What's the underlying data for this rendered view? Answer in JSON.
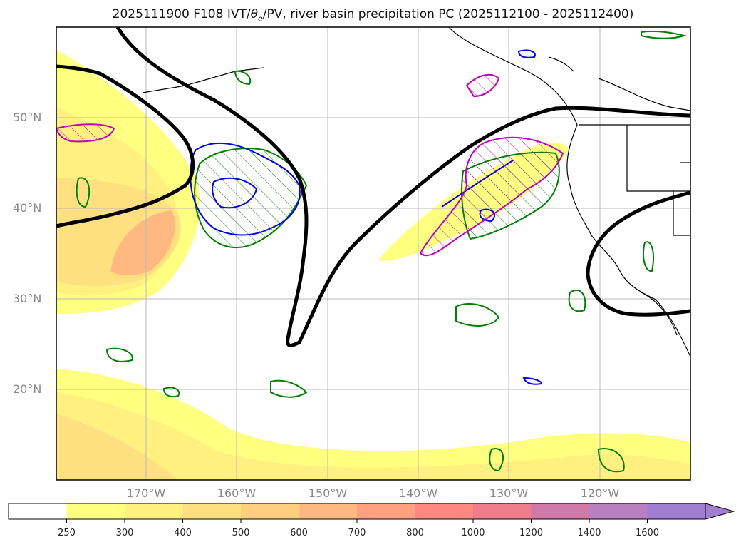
{
  "title": {
    "prefix": "2025111900 F108 IVT/",
    "theta_sym": "θ",
    "theta_sub": "e",
    "suffix": "/PV, river basin precipitation PC (2025112100 - 2025112400)"
  },
  "axes": {
    "lat_labels": [
      "50°N",
      "40°N",
      "30°N",
      "20°N"
    ],
    "lon_labels": [
      "170°W",
      "160°W",
      "150°W",
      "140°W",
      "130°W",
      "120°W"
    ]
  },
  "colorbar": {
    "ticks": [
      "250",
      "300",
      "400",
      "500",
      "600",
      "700",
      "800",
      "1000",
      "1200",
      "1400",
      "1600"
    ],
    "colors": [
      "#ffffff",
      "#ffff80",
      "#fff080",
      "#ffe080",
      "#ffcf80",
      "#ffb880",
      "#ffa080",
      "#ff8880",
      "#ee7c8a",
      "#cf7aa8",
      "#ba7ec2",
      "#a07ed2"
    ],
    "extend": "max"
  },
  "legend_colors": {
    "pv_contour": "#000000",
    "theta_e": "#0000ee",
    "precip_green": "#008000",
    "precip_magenta": "#c000c0",
    "coast": "#000000"
  }
}
